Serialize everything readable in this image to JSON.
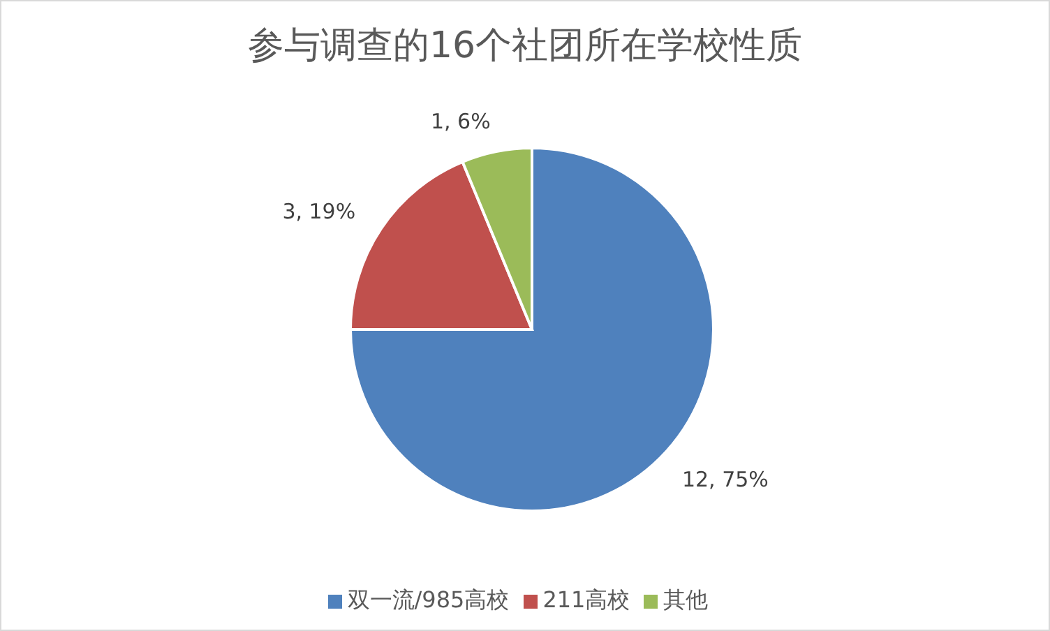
{
  "chart_data": {
    "type": "pie",
    "title": "参与调查的16个社团所在学校性质",
    "categories": [
      "双一流/985高校",
      "211高校",
      "其他"
    ],
    "values": [
      12,
      3,
      1
    ],
    "colors": [
      "#4f81bd",
      "#c0504d",
      "#9bbb59"
    ],
    "value_labels": [
      "12, 75%",
      "3, 19%",
      "1, 6%"
    ],
    "legend": "bottom"
  }
}
